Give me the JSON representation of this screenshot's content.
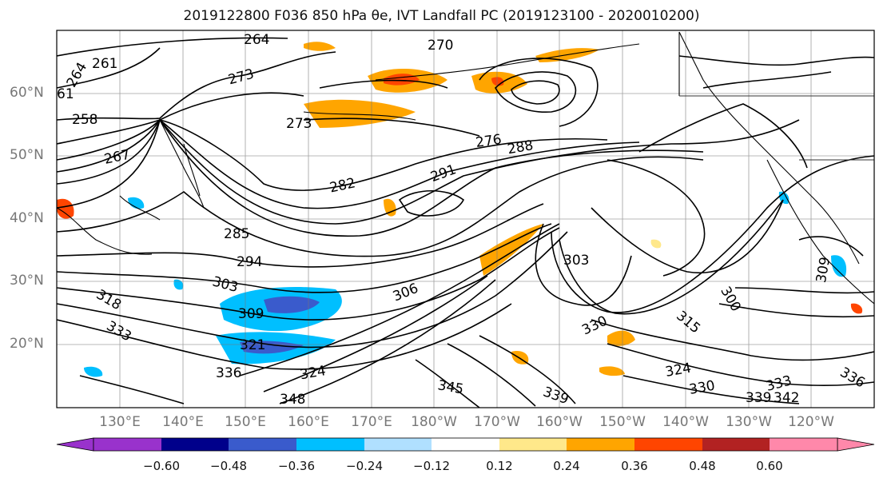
{
  "title": "2019122800 F036 850 hPa θe, IVT Landfall PC (2019123100 - 2020010200)",
  "map": {
    "lat_labels": [
      "60°N",
      "50°N",
      "40°N",
      "30°N",
      "20°N"
    ],
    "lon_labels": [
      "130°E",
      "140°E",
      "150°E",
      "160°E",
      "170°E",
      "180°W",
      "170°W",
      "160°W",
      "150°W",
      "140°W",
      "130°W",
      "120°W"
    ],
    "contour_labels": [
      "264",
      "261",
      "264",
      "273",
      "270",
      "61",
      "258",
      "273",
      "267",
      "276",
      "288",
      "282",
      "291",
      "285",
      "294",
      "303",
      "303",
      "306",
      "309",
      "318",
      "333",
      "321",
      "336",
      "324",
      "330",
      "315",
      "324",
      "330",
      "333",
      "339",
      "342",
      "336",
      "345",
      "348",
      "339",
      "300",
      "309"
    ]
  },
  "colorbar": {
    "ticks": [
      "−0.60",
      "−0.48",
      "−0.36",
      "−0.24",
      "−0.12",
      "0.12",
      "0.24",
      "0.36",
      "0.48",
      "0.60"
    ],
    "colors": [
      "#9932cc",
      "#00008b",
      "#3a5bcc",
      "#00bfff",
      "#b0e0ff",
      "#ffffff",
      "#ffe88a",
      "#ffa500",
      "#ff4500",
      "#b22222",
      "#ff88aa"
    ]
  }
}
